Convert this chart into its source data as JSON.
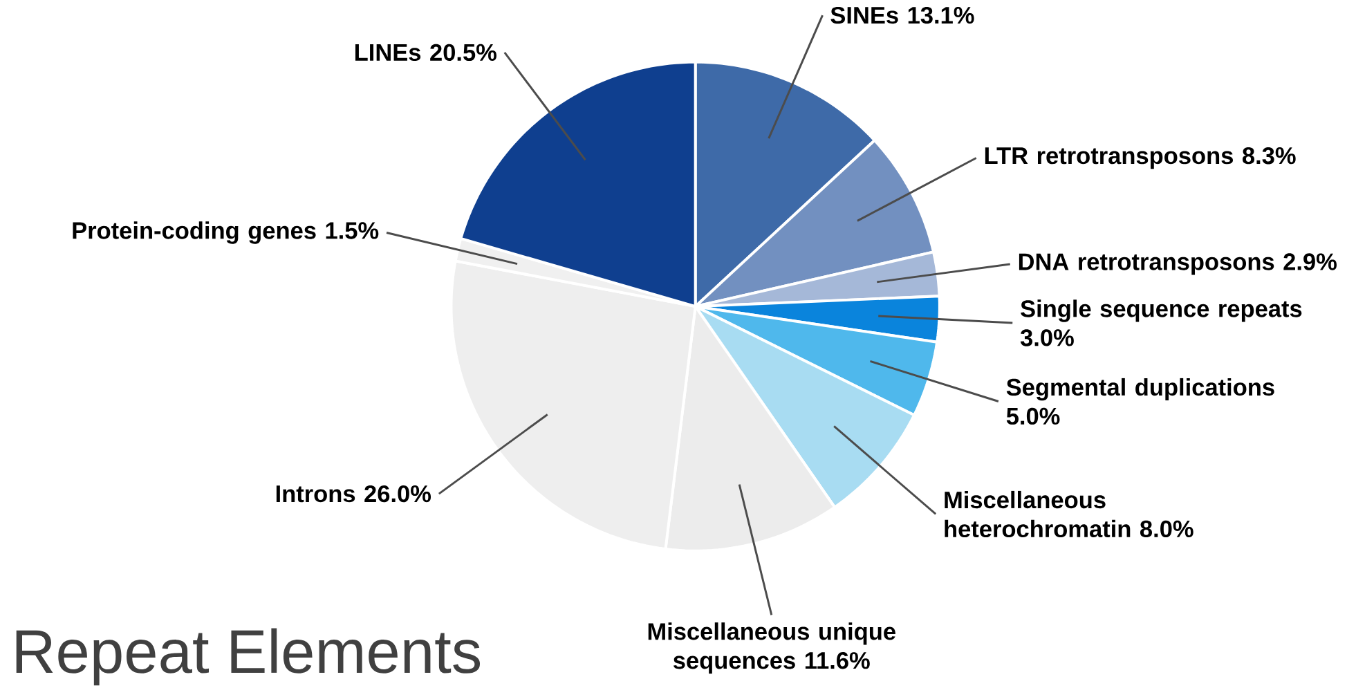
{
  "chart_data": {
    "type": "pie",
    "title": "Repeat Elements",
    "categories": [
      "SINEs",
      "LTR retrotransposons",
      "DNA retrotransposons",
      "Single sequence repeats",
      "Segmental duplications",
      "Miscellaneous heterochromatin",
      "Miscellaneous unique sequences",
      "Introns",
      "Protein-coding genes",
      "LINEs"
    ],
    "values": [
      13.1,
      8.3,
      2.9,
      3.0,
      5.0,
      8.0,
      11.6,
      26.0,
      1.5,
      20.5
    ],
    "value_labels": [
      "13.1%",
      "8.3%",
      "2.9%",
      "3.0%",
      "5.0%",
      "8.0%",
      "11.6%",
      "26.0%",
      "1.5%",
      "20.5%"
    ],
    "colors": [
      "#3e6aa8",
      "#7290c0",
      "#a5b8d8",
      "#0a84dc",
      "#4fb8ec",
      "#a8dcf2",
      "#ececec",
      "#eeeeee",
      "#f0f0f0",
      "#0f3f8f"
    ]
  }
}
